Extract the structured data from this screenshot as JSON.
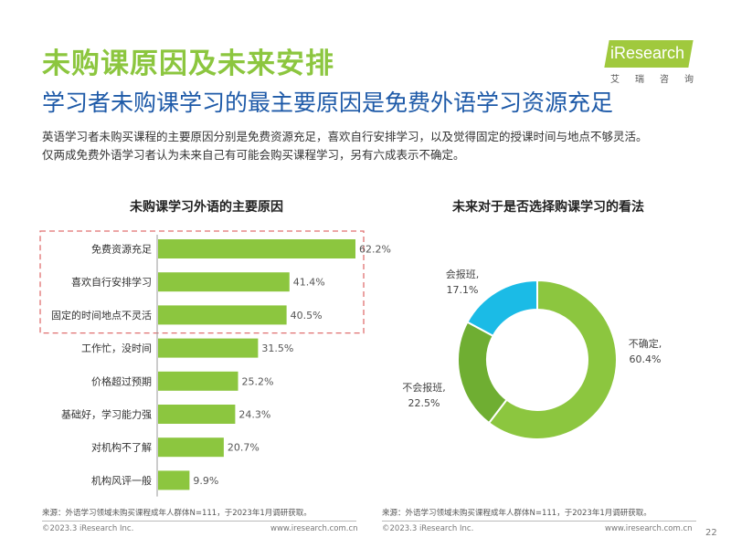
{
  "header": {
    "title": "未购课原因及未来安排",
    "subtitle": "学习者未购课学习的最主要原因是免费外语学习资源充足",
    "summary_line1": "英语学习者未购买课程的主要原因分别是免费资源充足，喜欢自行安排学习，以及觉得固定的授课时间与地点不够灵活。",
    "summary_line2": "仅两成免费外语学习者认为未来自己有可能会购买课程学习，另有六成表示不确定。"
  },
  "logo": {
    "brand": "iResearch",
    "brand_cn": "艾瑞咨询"
  },
  "colors": {
    "title_green": "#8cc63f",
    "subtitle_blue": "#1e5aa8",
    "bar_green": "#8cc63f",
    "pie_light_green": "#8cc63f",
    "pie_dark_green": "#6fae32",
    "pie_cyan": "#1bbbe6",
    "highlight_red": "#e07070"
  },
  "chart_data": [
    {
      "type": "bar",
      "orientation": "horizontal",
      "title": "未购课学习外语的主要原因",
      "categories": [
        "免费资源充足",
        "喜欢自行安排学习",
        "固定的时间地点不灵活",
        "工作忙，没时间",
        "价格超过预期",
        "基础好，学习能力强",
        "对机构不了解",
        "机构风评一般"
      ],
      "values": [
        62.2,
        41.4,
        40.5,
        31.5,
        25.2,
        24.3,
        20.7,
        9.9
      ],
      "value_labels": [
        "62.2%",
        "41.4%",
        "40.5%",
        "31.5%",
        "25.2%",
        "24.3%",
        "20.7%",
        "9.9%"
      ],
      "highlighted": [
        0,
        1,
        2
      ],
      "xlim": [
        0,
        70
      ]
    },
    {
      "type": "pie",
      "style": "donut",
      "title": "未来对于是否选择购课学习的看法",
      "slices": [
        {
          "label": "不确定",
          "value": 60.4,
          "value_label": "60.4%"
        },
        {
          "label": "不会报班",
          "value": 22.5,
          "value_label": "22.5%"
        },
        {
          "label": "会报班",
          "value": 17.1,
          "value_label": "17.1%"
        }
      ]
    }
  ],
  "sources": {
    "left": "来源：外语学习领域未购买课程成年人群体N=111，于2023年1月调研获取。",
    "right": "来源：外语学习领域未购买课程成年人群体N=111，于2023年1月调研获取。"
  },
  "footer": {
    "copyright_left": "©2023.3 iResearch Inc.",
    "url_left": "www.iresearch.com.cn",
    "copyright_right": "©2023.3 iResearch Inc.",
    "url_right": "www.iresearch.com.cn",
    "page_number": "22"
  }
}
